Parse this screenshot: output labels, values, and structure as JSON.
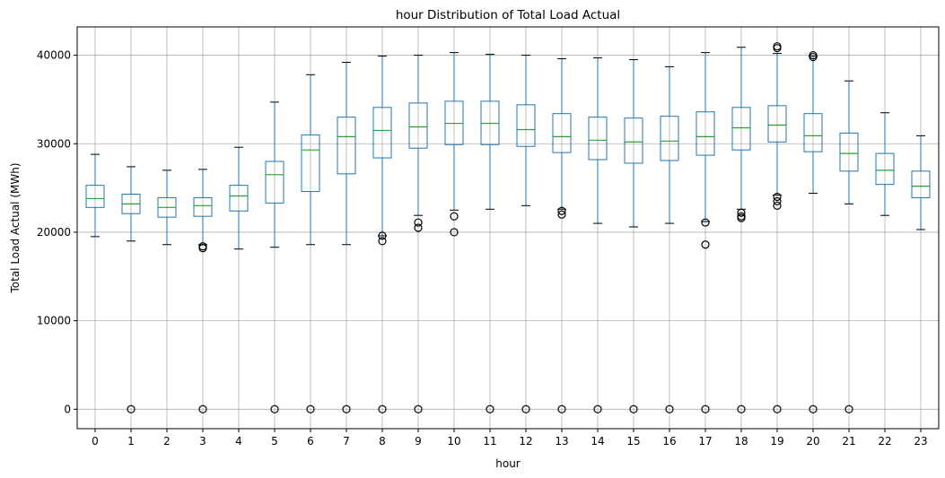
{
  "chart_data": {
    "type": "box",
    "title": "hour Distribution of Total Load Actual",
    "xlabel": "hour",
    "ylabel": "Total Load Actual (MWh)",
    "ylim": [
      -2200,
      43200
    ],
    "yticks": [
      0,
      10000,
      20000,
      30000,
      40000
    ],
    "grid": true,
    "colors": {
      "box": "#1f77b4",
      "median": "#2ca02c",
      "outlier": "#000000",
      "grid": "#b0b0b0",
      "axis": "#000000"
    },
    "categories": [
      "0",
      "1",
      "2",
      "3",
      "4",
      "5",
      "6",
      "7",
      "8",
      "9",
      "10",
      "11",
      "12",
      "13",
      "14",
      "15",
      "16",
      "17",
      "18",
      "19",
      "20",
      "21",
      "22",
      "23"
    ],
    "boxes": [
      {
        "whislo": 19500,
        "q1": 22800,
        "med": 23800,
        "q3": 25300,
        "whishi": 28800,
        "fliers": []
      },
      {
        "whislo": 19000,
        "q1": 22100,
        "med": 23200,
        "q3": 24300,
        "whishi": 27400,
        "fliers": [
          0
        ]
      },
      {
        "whislo": 18600,
        "q1": 21700,
        "med": 22800,
        "q3": 23900,
        "whishi": 27000,
        "fliers": []
      },
      {
        "whislo": 18600,
        "q1": 21800,
        "med": 23000,
        "q3": 23900,
        "whishi": 27100,
        "fliers": [
          18400,
          18200,
          0
        ]
      },
      {
        "whislo": 18100,
        "q1": 22400,
        "med": 24100,
        "q3": 25300,
        "whishi": 29600,
        "fliers": []
      },
      {
        "whislo": 18300,
        "q1": 23300,
        "med": 26500,
        "q3": 28000,
        "whishi": 34700,
        "fliers": [
          0
        ]
      },
      {
        "whislo": 18600,
        "q1": 24600,
        "med": 29300,
        "q3": 31000,
        "whishi": 37800,
        "fliers": [
          0
        ]
      },
      {
        "whislo": 18600,
        "q1": 26600,
        "med": 30800,
        "q3": 33000,
        "whishi": 39200,
        "fliers": [
          0
        ]
      },
      {
        "whislo": 19600,
        "q1": 28400,
        "med": 31500,
        "q3": 34100,
        "whishi": 39900,
        "fliers": [
          19600,
          19000,
          0
        ]
      },
      {
        "whislo": 21900,
        "q1": 29500,
        "med": 31900,
        "q3": 34600,
        "whishi": 40000,
        "fliers": [
          21100,
          20500,
          0
        ]
      },
      {
        "whislo": 22500,
        "q1": 29900,
        "med": 32300,
        "q3": 34800,
        "whishi": 40300,
        "fliers": [
          21800,
          20000
        ]
      },
      {
        "whislo": 22600,
        "q1": 29900,
        "med": 32300,
        "q3": 34800,
        "whishi": 40100,
        "fliers": [
          0
        ]
      },
      {
        "whislo": 23000,
        "q1": 29700,
        "med": 31600,
        "q3": 34400,
        "whishi": 40000,
        "fliers": [
          0
        ]
      },
      {
        "whislo": 22600,
        "q1": 29000,
        "med": 30800,
        "q3": 33400,
        "whishi": 39600,
        "fliers": [
          22400,
          22000,
          0
        ]
      },
      {
        "whislo": 21000,
        "q1": 28200,
        "med": 30400,
        "q3": 33000,
        "whishi": 39700,
        "fliers": [
          0
        ]
      },
      {
        "whislo": 20600,
        "q1": 27800,
        "med": 30200,
        "q3": 32900,
        "whishi": 39500,
        "fliers": [
          0
        ]
      },
      {
        "whislo": 21000,
        "q1": 28100,
        "med": 30300,
        "q3": 33100,
        "whishi": 38700,
        "fliers": [
          0
        ]
      },
      {
        "whislo": 21200,
        "q1": 28700,
        "med": 30800,
        "q3": 33600,
        "whishi": 40300,
        "fliers": [
          21100,
          18600,
          0
        ]
      },
      {
        "whislo": 22600,
        "q1": 29300,
        "med": 31800,
        "q3": 34100,
        "whishi": 40900,
        "fliers": [
          22200,
          21800,
          21600,
          0
        ]
      },
      {
        "whislo": 24200,
        "q1": 30200,
        "med": 32100,
        "q3": 34300,
        "whishi": 40200,
        "fliers": [
          41000,
          40800,
          24000,
          23500,
          23000,
          0
        ]
      },
      {
        "whislo": 24400,
        "q1": 29100,
        "med": 30900,
        "q3": 33400,
        "whishi": 39900,
        "fliers": [
          40000,
          39800,
          0
        ]
      },
      {
        "whislo": 23200,
        "q1": 26900,
        "med": 28900,
        "q3": 31200,
        "whishi": 37100,
        "fliers": [
          0
        ]
      },
      {
        "whislo": 21900,
        "q1": 25400,
        "med": 27000,
        "q3": 28900,
        "whishi": 33500,
        "fliers": []
      },
      {
        "whislo": 20300,
        "q1": 23900,
        "med": 25200,
        "q3": 26900,
        "whishi": 30900,
        "fliers": []
      }
    ]
  }
}
